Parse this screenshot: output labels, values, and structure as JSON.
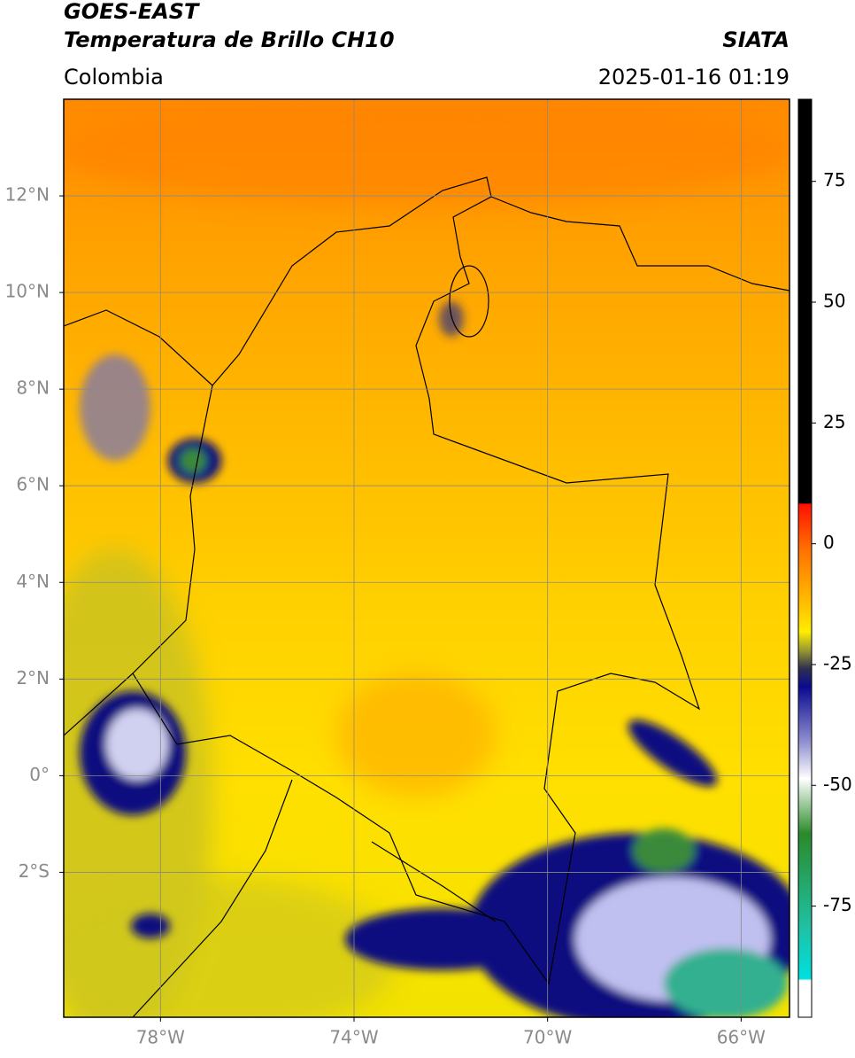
{
  "header": {
    "satellite": "GOES-EAST",
    "product": "Temperatura de Brillo CH10",
    "region": "Colombia",
    "source": "SIATA",
    "timestamp": "2025-01-16 01:19"
  },
  "map": {
    "lon_range": [
      -80,
      -65
    ],
    "lat_range": [
      -5,
      14
    ],
    "lon_ticks": [
      {
        "value": -78,
        "label": "78°W"
      },
      {
        "value": -74,
        "label": "74°W"
      },
      {
        "value": -70,
        "label": "70°W"
      },
      {
        "value": -66,
        "label": "66°W"
      }
    ],
    "lat_ticks": [
      {
        "value": 12,
        "label": "12°N"
      },
      {
        "value": 10,
        "label": "10°N"
      },
      {
        "value": 8,
        "label": "8°N"
      },
      {
        "value": 6,
        "label": "6°N"
      },
      {
        "value": 4,
        "label": "4°N"
      },
      {
        "value": 2,
        "label": "2°N"
      },
      {
        "value": 0,
        "label": "0°"
      },
      {
        "value": -2,
        "label": "2°S"
      }
    ]
  },
  "colorbar": {
    "range": [
      -98,
      92
    ],
    "ticks": [
      75,
      50,
      25,
      0,
      -25,
      -50,
      -75
    ]
  }
}
